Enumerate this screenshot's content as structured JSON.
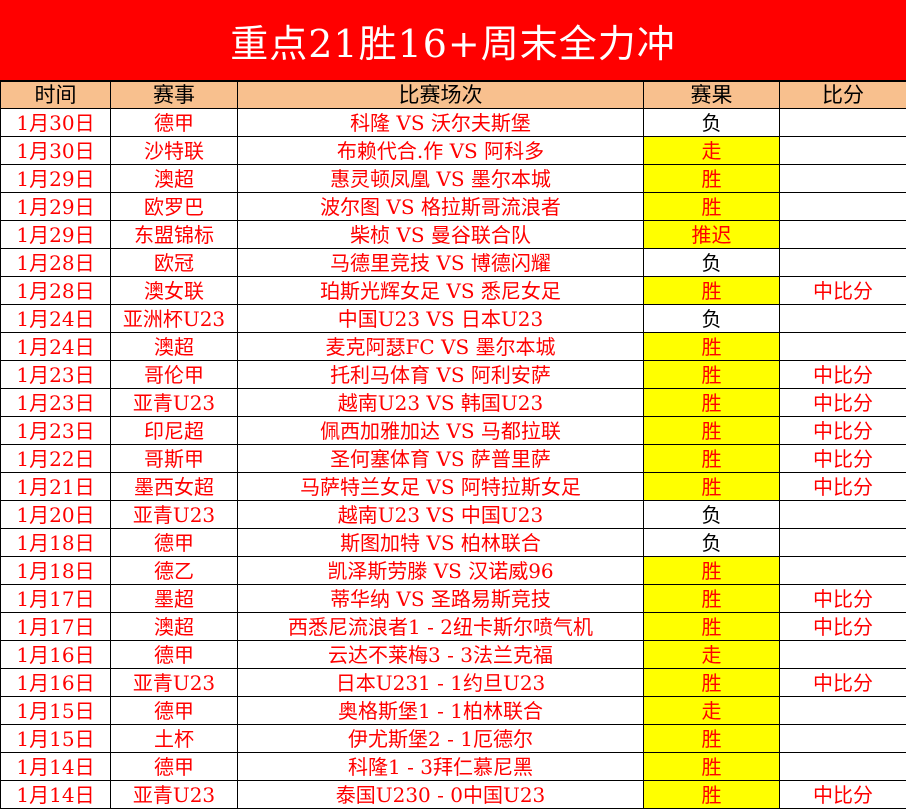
{
  "title": "重点21胜16+周末全力冲",
  "colors": {
    "title_bg": "#ff0000",
    "header_bg": "#f8c08e",
    "highlight": "#ffff00",
    "text": "#ff0000"
  },
  "headers": [
    "时间",
    "赛事",
    "比赛场次",
    "赛果",
    "比分"
  ],
  "rows": [
    [
      "1月30日",
      "德甲",
      "科隆 VS 沃尔夫斯堡",
      "负",
      ""
    ],
    [
      "1月30日",
      "沙特联",
      "布赖代合.作 VS 阿科多",
      "走",
      ""
    ],
    [
      "1月29日",
      "澳超",
      "惠灵顿凤凰 VS 墨尔本城",
      "胜",
      ""
    ],
    [
      "1月29日",
      "欧罗巴",
      "波尔图 VS 格拉斯哥流浪者",
      "胜",
      ""
    ],
    [
      "1月29日",
      "东盟锦标",
      "柴桢 VS 曼谷联合队",
      "推迟",
      ""
    ],
    [
      "1月28日",
      "欧冠",
      "马德里竞技 VS 博德闪耀",
      "负",
      ""
    ],
    [
      "1月28日",
      "澳女联",
      "珀斯光辉女足 VS 悉尼女足",
      "胜",
      "中比分"
    ],
    [
      "1月24日",
      "亚洲杯U23",
      "中国U23 VS 日本U23",
      "负",
      ""
    ],
    [
      "1月24日",
      "澳超",
      "麦克阿瑟FC VS 墨尔本城",
      "胜",
      ""
    ],
    [
      "1月23日",
      "哥伦甲",
      "托利马体育 VS 阿利安萨",
      "胜",
      "中比分"
    ],
    [
      "1月23日",
      "亚青U23",
      "越南U23 VS 韩国U23",
      "胜",
      "中比分"
    ],
    [
      "1月23日",
      "印尼超",
      "佩西加雅加达 VS 马都拉联",
      "胜",
      "中比分"
    ],
    [
      "1月22日",
      "哥斯甲",
      "圣何塞体育 VS 萨普里萨",
      "胜",
      "中比分"
    ],
    [
      "1月21日",
      "墨西女超",
      "马萨特兰女足 VS 阿特拉斯女足",
      "胜",
      "中比分"
    ],
    [
      "1月20日",
      "亚青U23",
      "越南U23 VS 中国U23",
      "负",
      ""
    ],
    [
      "1月18日",
      "德甲",
      "斯图加特 VS 柏林联合",
      "负",
      ""
    ],
    [
      "1月18日",
      "德乙",
      "凯泽斯劳滕 VS 汉诺威96",
      "胜",
      ""
    ],
    [
      "1月17日",
      "墨超",
      "蒂华纳 VS 圣路易斯竞技",
      "胜",
      "中比分"
    ],
    [
      "1月17日",
      "澳超",
      "西悉尼流浪者1 - 2纽卡斯尔喷气机",
      "胜",
      "中比分"
    ],
    [
      "1月16日",
      "德甲",
      "云达不莱梅3 - 3法兰克福",
      "走",
      ""
    ],
    [
      "1月16日",
      "亚青U23",
      "日本U231 - 1约旦U23",
      "胜",
      "中比分"
    ],
    [
      "1月15日",
      "德甲",
      "奥格斯堡1 - 1柏林联合",
      "走",
      ""
    ],
    [
      "1月15日",
      "土杯",
      "伊尤斯堡2 - 1厄德尔",
      "胜",
      ""
    ],
    [
      "1月14日",
      "德甲",
      "科隆1 - 3拜仁慕尼黑",
      "胜",
      ""
    ],
    [
      "1月14日",
      "亚青U23",
      "泰国U230 - 0中国U23",
      "胜",
      "中比分"
    ]
  ]
}
